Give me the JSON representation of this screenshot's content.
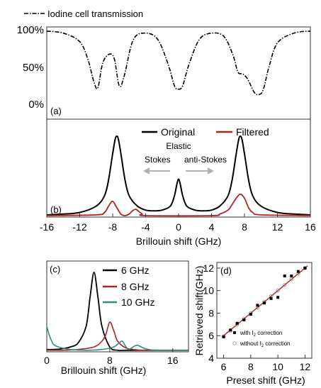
{
  "colors": {
    "original": "#000000",
    "filtered": "#b22222",
    "ten_ghz": "#2f8f80",
    "fit_line": "#b22222",
    "arrow": "#b0b0b0",
    "frame": "#333333"
  },
  "chart_data": [
    {
      "panel": "(a)",
      "type": "line",
      "legend": "Iodine cell transmission",
      "legend_position": "top-left",
      "yticks": [
        "100%",
        "50%",
        "0%"
      ],
      "xlim": [
        -16,
        16
      ],
      "ylim": [
        0,
        1
      ],
      "series": [
        {
          "name": "Iodine cell transmission",
          "style": "dash-dot",
          "x": [
            -16,
            -14,
            -12,
            -11,
            -10.3,
            -9.8,
            -9.2,
            -8.4,
            -7.8,
            -7.2,
            -6.6,
            -5.5,
            -4,
            -2.5,
            -1.2,
            -0.5,
            0,
            0.5,
            1.2,
            2.5,
            4,
            5.5,
            6.6,
            7.2,
            7.8,
            8.4,
            9.2,
            9.8,
            10.3,
            11,
            12,
            14,
            16
          ],
          "values": [
            0.98,
            0.95,
            0.82,
            0.55,
            0.22,
            0.12,
            0.5,
            0.63,
            0.56,
            0.15,
            0.3,
            0.85,
            0.95,
            0.85,
            0.45,
            0.15,
            0.1,
            0.15,
            0.45,
            0.85,
            0.95,
            0.9,
            0.62,
            0.36,
            0.33,
            0.25,
            0.05,
            0.02,
            0.1,
            0.45,
            0.8,
            0.95,
            0.98
          ]
        }
      ]
    },
    {
      "panel": "(b)",
      "type": "line",
      "xlabel": "Brillouin shift (GHz)",
      "xticks": [
        "-16",
        "-12",
        "-8",
        "-4",
        "0",
        "4",
        "8",
        "12",
        "16"
      ],
      "xlim": [
        -16,
        16
      ],
      "legend_position": "top-right",
      "annotations": {
        "elastic": "Elastic",
        "stokes": "Stokes",
        "anti_stokes": "anti-Stokes"
      },
      "series": [
        {
          "name": "Original",
          "x": [
            -16,
            -14,
            -12,
            -10,
            -9,
            -8.5,
            -8,
            -7.7,
            -7.5,
            -7.3,
            -7,
            -6.5,
            -6,
            -5,
            -4,
            -3,
            -2,
            -1,
            -0.5,
            -0.2,
            0,
            0.2,
            0.5,
            1,
            2,
            3,
            4,
            5,
            6,
            6.5,
            7,
            7.3,
            7.5,
            7.7,
            8,
            8.5,
            9,
            10,
            12,
            14,
            16
          ],
          "values": [
            0.01,
            0.02,
            0.04,
            0.12,
            0.25,
            0.45,
            0.78,
            0.96,
            1.0,
            0.96,
            0.78,
            0.45,
            0.25,
            0.12,
            0.07,
            0.06,
            0.07,
            0.12,
            0.25,
            0.4,
            0.46,
            0.4,
            0.25,
            0.12,
            0.07,
            0.06,
            0.07,
            0.12,
            0.25,
            0.45,
            0.78,
            0.96,
            1.0,
            0.96,
            0.78,
            0.45,
            0.25,
            0.12,
            0.04,
            0.02,
            0.01
          ]
        },
        {
          "name": "Filtered",
          "x": [
            -16,
            -10,
            -9,
            -8.5,
            -8,
            -7.5,
            -7,
            -6.5,
            -6,
            -5.6,
            -5.2,
            -4.8,
            -4.4,
            -4,
            4,
            5,
            6,
            6.5,
            7,
            7.5,
            8,
            8.5,
            9,
            10,
            16
          ],
          "values": [
            0,
            0.01,
            0.04,
            0.12,
            0.18,
            0.1,
            0.02,
            0.0,
            0.02,
            0.06,
            0.08,
            0.05,
            0.02,
            0.0,
            0.0,
            0.02,
            0.07,
            0.14,
            0.22,
            0.27,
            0.22,
            0.1,
            0.04,
            0.01,
            0
          ]
        }
      ]
    },
    {
      "panel": "(c)",
      "type": "line",
      "xlabel": "Brillouin shift (GHz)",
      "xticks": [
        "0",
        "8",
        "16"
      ],
      "xlim": [
        0,
        18
      ],
      "legend_position": "top-right",
      "series": [
        {
          "name": "6 GHz",
          "x": [
            0,
            1,
            2,
            3,
            4,
            5,
            5.5,
            6,
            6.5,
            7,
            8,
            9,
            10,
            12,
            14,
            18
          ],
          "values": [
            0.02,
            0.02,
            0.03,
            0.05,
            0.1,
            0.3,
            0.65,
            0.95,
            0.65,
            0.3,
            0.05,
            0.01,
            0.01,
            0.01,
            0.01,
            0.01
          ]
        },
        {
          "name": "8 GHz",
          "x": [
            0,
            2,
            4,
            6,
            7,
            7.5,
            8,
            8.5,
            9,
            10,
            11,
            12,
            14,
            18
          ],
          "values": [
            0.01,
            0.01,
            0.02,
            0.05,
            0.12,
            0.2,
            0.35,
            0.25,
            0.12,
            0.04,
            0.02,
            0.01,
            0.01,
            0.01
          ]
        },
        {
          "name": "10 GHz",
          "x": [
            0,
            0.3,
            0.8,
            1.5,
            3,
            5,
            7,
            8.5,
            9.2,
            9.6,
            10,
            10.4,
            10.8,
            11.5,
            12.5,
            14,
            18
          ],
          "values": [
            0.3,
            0.2,
            0.09,
            0.05,
            0.02,
            0.01,
            0.02,
            0.05,
            0.1,
            0.12,
            0.06,
            0.02,
            0.04,
            0.07,
            0.03,
            0.01,
            0.01
          ]
        }
      ]
    },
    {
      "panel": "(d)",
      "type": "scatter",
      "xlabel": "Preset shift (GHz)",
      "ylabel": "Retrieved shift(GHz)",
      "xticks": [
        "6",
        "8",
        "10",
        "12"
      ],
      "yticks": [
        "4",
        "6",
        "8",
        "10",
        "12"
      ],
      "xlim": [
        5.5,
        12.5
      ],
      "ylim": [
        4,
        12.5
      ],
      "legend_position": "bottom-right",
      "series": [
        {
          "name_prefix": "with I",
          "name_sub": "2",
          "name_suffix": " correction",
          "marker": "filled-square",
          "x": [
            6,
            6.5,
            7,
            7.5,
            8,
            8.5,
            9,
            9.5,
            10,
            10.5,
            11,
            11.5,
            12
          ],
          "values": [
            5.9,
            6.5,
            7.1,
            7.4,
            7.9,
            8.7,
            8.9,
            9.3,
            9.4,
            11.3,
            11.3,
            11.7,
            12.0
          ]
        },
        {
          "name_prefix": "without I",
          "name_sub": "2",
          "name_suffix": " correction",
          "marker": "open-circle",
          "x": [
            6,
            6.5,
            7,
            7.5,
            8,
            8.5,
            9,
            9.5,
            10,
            10.5,
            11,
            11.5,
            12
          ],
          "values": [
            5.95,
            6.45,
            7.0,
            7.5,
            8.0,
            8.5,
            9.0,
            9.5,
            10.0,
            10.5,
            11.0,
            11.5,
            12.0
          ]
        }
      ]
    }
  ]
}
